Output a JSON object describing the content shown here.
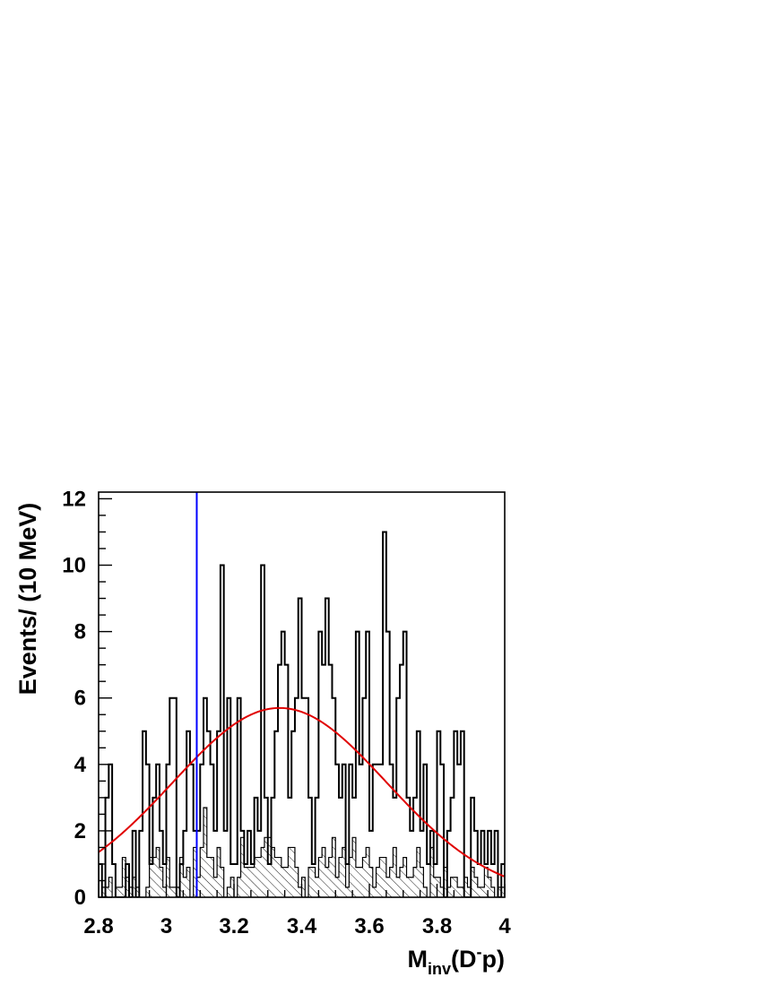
{
  "chart_data": {
    "type": "histogram",
    "xlabel": {
      "base": "M",
      "sub": "inv",
      "open": "(D",
      "sup": "-",
      "close": "p)"
    },
    "ylabel": "Events/ (10 MeV)",
    "xlim": [
      2.8,
      4.0
    ],
    "ylim": [
      0,
      12.2
    ],
    "bin_width": 0.01,
    "x_ticks": [
      2.8,
      3,
      3.2,
      3.4,
      3.6,
      3.8,
      4
    ],
    "x_tick_labels": [
      "2.8",
      "3",
      "3.2",
      "3.4",
      "3.6",
      "3.8",
      "4"
    ],
    "y_ticks": [
      0,
      2,
      4,
      6,
      8,
      10,
      12
    ],
    "y_tick_labels": [
      "0",
      "2",
      "4",
      "6",
      "8",
      "10",
      "12"
    ],
    "series": [
      {
        "style": "histogram-outline",
        "color": "#000000",
        "values": [
          1,
          0,
          3,
          4,
          1,
          0,
          0,
          0,
          1,
          0,
          2,
          0,
          2,
          5,
          4,
          1,
          3,
          4,
          2,
          1,
          4,
          6,
          6,
          0,
          1,
          2,
          5,
          4,
          2,
          2,
          4,
          6,
          5,
          4,
          2,
          5,
          10,
          2,
          6,
          1,
          1,
          6,
          2,
          1,
          2,
          1,
          3,
          2,
          10,
          3,
          1,
          3,
          5,
          7,
          8,
          7,
          3,
          5,
          6,
          9,
          6,
          6,
          3,
          1,
          3,
          8,
          7,
          9,
          7,
          6,
          4,
          3,
          4,
          1,
          4,
          3,
          8,
          4,
          6,
          8,
          2,
          4,
          4,
          4,
          11,
          8,
          4,
          3,
          6,
          7,
          8,
          3,
          2,
          3,
          5,
          2,
          4,
          1,
          2,
          1,
          5,
          4,
          0,
          2,
          3,
          5,
          4,
          5,
          0,
          0,
          3,
          2,
          1,
          2,
          1,
          2,
          1,
          2,
          0,
          1
        ],
        "approx": true
      },
      {
        "style": "histogram-hatched",
        "color": "#000000",
        "values": [
          0,
          0.3,
          0.3,
          0.6,
          0,
          0.3,
          0.3,
          1.2,
          0.6,
          0.3,
          0.6,
          0.3,
          0,
          0,
          0.3,
          1.2,
          1.2,
          1.5,
          0.9,
          0.3,
          1.2,
          0.3,
          0.3,
          0.3,
          1.2,
          0.6,
          0.9,
          0,
          1.5,
          0.6,
          1.5,
          2.7,
          1.2,
          1.2,
          0.6,
          1.5,
          0.9,
          0,
          0.3,
          0.6,
          0,
          0.6,
          1.8,
          0.9,
          0.9,
          0.9,
          1.2,
          1.2,
          1.5,
          1.8,
          1.8,
          1.5,
          1.2,
          1.2,
          0.9,
          0.9,
          1.5,
          1.5,
          0.9,
          0.3,
          0.6,
          0,
          0.9,
          0.9,
          0.6,
          1.2,
          1.5,
          0.9,
          1.2,
          1.8,
          0.6,
          1.2,
          1.5,
          0.3,
          1.2,
          1.8,
          0.9,
          0.9,
          1.2,
          1.5,
          0.9,
          0.3,
          0.9,
          1.2,
          1.2,
          0.6,
          0.9,
          1.5,
          0.6,
          0.9,
          1.2,
          0.6,
          0.6,
          0.9,
          1.5,
          0.9,
          0.3,
          0,
          1.5,
          0.6,
          0.6,
          0.3,
          0.9,
          0.3,
          0.6,
          0.6,
          0.3,
          0.3,
          0.6,
          0.3,
          0.9,
          0.6,
          0.3,
          0.3,
          0.9,
          0.6,
          0.3,
          0,
          0.3,
          0.3
        ],
        "approx": true
      }
    ],
    "fit_curve": {
      "type": "gaussian",
      "color": "#e00000",
      "amplitude": 5.7,
      "mean": 3.335,
      "sigma": 0.316
    },
    "reference_line": {
      "x": 3.09,
      "color": "#0000ff"
    },
    "grid": false,
    "legend": "none"
  }
}
